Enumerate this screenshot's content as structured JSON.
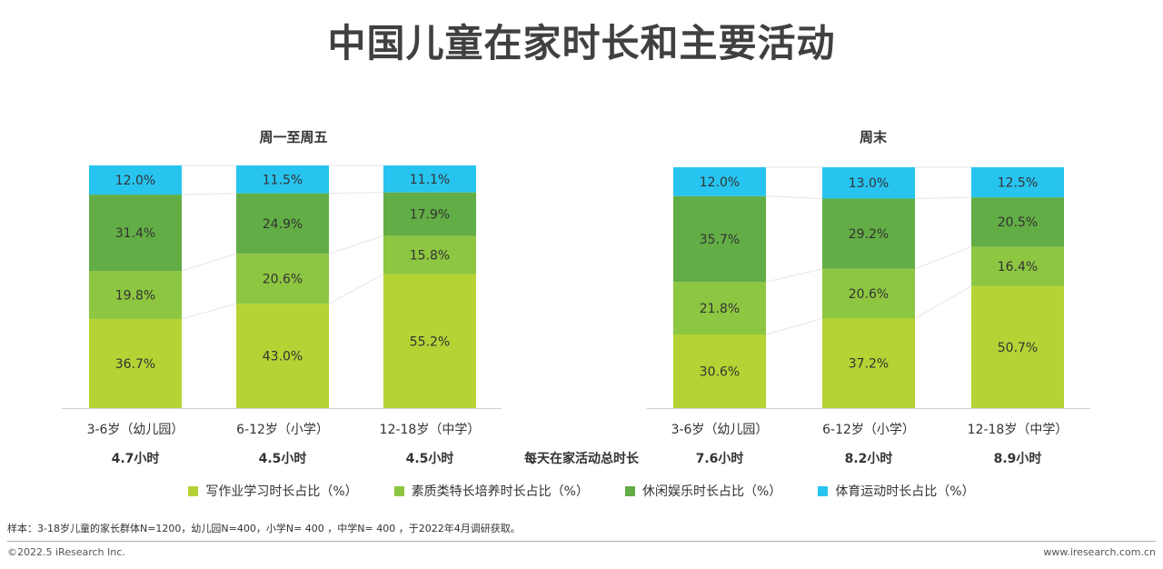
{
  "title": "中国儿童在家时长和主要活动",
  "chart_data": [
    {
      "type": "bar",
      "stacked": true,
      "title": "周一至周五",
      "categories": [
        "3-6岁（幼儿园）",
        "6-12岁（小学）",
        "12-18岁（中学）"
      ],
      "totals": [
        "4.7小时",
        "4.5小时",
        "4.5小时"
      ],
      "series": [
        {
          "name": "写作业学习时长占比（%）",
          "color": "#b5d334",
          "values": [
            36.7,
            43.0,
            55.2
          ],
          "labels": [
            "36.7%",
            "43.0%",
            "55.2%"
          ]
        },
        {
          "name": "素质类特长培养时长占比（%）",
          "color": "#8dc641",
          "values": [
            19.8,
            20.6,
            15.8
          ],
          "labels": [
            "19.8%",
            "20.6%",
            "15.8%"
          ]
        },
        {
          "name": "休闲娱乐时长占比（%）",
          "color": "#62ad45",
          "values": [
            31.4,
            24.9,
            17.9
          ],
          "labels": [
            "31.4%",
            "24.9%",
            "17.9%"
          ]
        },
        {
          "name": "体育运动时长占比（%）",
          "color": "#27c4f0",
          "values": [
            12.0,
            11.5,
            11.1
          ],
          "labels": [
            "12.0%",
            "11.5%",
            "11.1%"
          ]
        }
      ]
    },
    {
      "type": "bar",
      "stacked": true,
      "title": "周末",
      "categories": [
        "3-6岁（幼儿园）",
        "6-12岁（小学）",
        "12-18岁（中学）"
      ],
      "totals": [
        "7.6小时",
        "8.2小时",
        "8.9小时"
      ],
      "series": [
        {
          "name": "写作业学习时长占比（%）",
          "color": "#b5d334",
          "values": [
            30.6,
            37.2,
            50.7
          ],
          "labels": [
            "30.6%",
            "37.2%",
            "50.7%"
          ]
        },
        {
          "name": "素质类特长培养时长占比（%）",
          "color": "#8dc641",
          "values": [
            21.8,
            20.6,
            16.4
          ],
          "labels": [
            "21.8%",
            "20.6%",
            "16.4%"
          ]
        },
        {
          "name": "休闲娱乐时长占比（%）",
          "color": "#62ad45",
          "values": [
            35.7,
            29.2,
            20.5
          ],
          "labels": [
            "35.7%",
            "29.2%",
            "20.5%"
          ]
        },
        {
          "name": "体育运动时长占比（%）",
          "color": "#27c4f0",
          "values": [
            12.0,
            13.0,
            12.5
          ],
          "labels": [
            "12.0%",
            "13.0%",
            "12.5%"
          ]
        }
      ]
    }
  ],
  "totals_label": "每天在家活动总时长",
  "legend": [
    {
      "label": "写作业学习时长占比（%）",
      "color": "#b5d334"
    },
    {
      "label": "素质类特长培养时长占比（%）",
      "color": "#8dc641"
    },
    {
      "label": "休闲娱乐时长占比（%）",
      "color": "#62ad45"
    },
    {
      "label": "体育运动时长占比（%）",
      "color": "#27c4f0"
    }
  ],
  "note": "样本：3-18岁儿童的家长群体N=1200，幼儿园N=400，小学N= 400 ，中学N= 400 ，于2022年4月调研获取。",
  "copyright": "©2022.5 iResearch Inc.",
  "site": "www.iresearch.com.cn"
}
